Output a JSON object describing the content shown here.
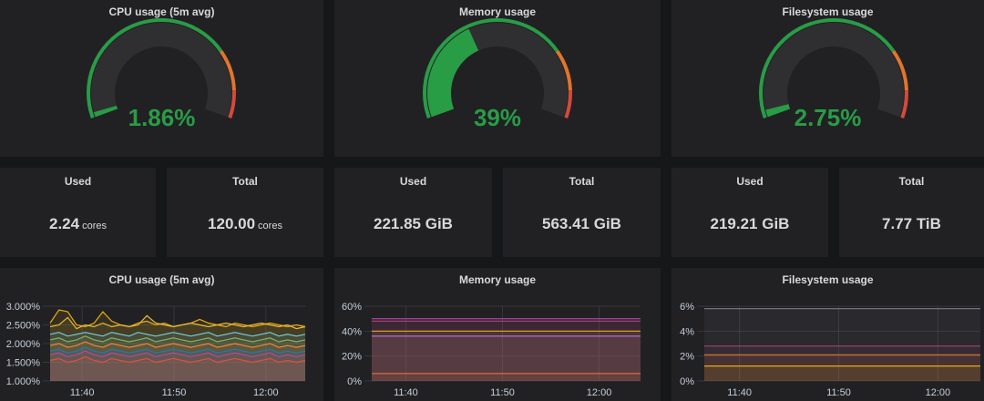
{
  "gauges": [
    {
      "title": "CPU usage (5m avg)",
      "value_text": "1.86%",
      "fraction": 0.0186
    },
    {
      "title": "Memory usage",
      "value_text": "39%",
      "fraction": 0.39
    },
    {
      "title": "Filesystem usage",
      "value_text": "2.75%",
      "fraction": 0.0275
    }
  ],
  "stats": [
    {
      "label": "Used",
      "value": "2.24",
      "unit": "cores"
    },
    {
      "label": "Total",
      "value": "120.00",
      "unit": "cores"
    },
    {
      "label": "Used",
      "value": "221.85 GiB",
      "unit": ""
    },
    {
      "label": "Total",
      "value": "563.41 GiB",
      "unit": ""
    },
    {
      "label": "Used",
      "value": "219.21 GiB",
      "unit": ""
    },
    {
      "label": "Total",
      "value": "7.77 TiB",
      "unit": ""
    }
  ],
  "colors": {
    "green": "#299c46",
    "orange": "#e0752d",
    "red": "#d44a3a",
    "panel": "#212124",
    "background": "#161719"
  },
  "chart_data": [
    {
      "type": "line",
      "title": "CPU usage (5m avg)",
      "y_ticks": [
        "3.000%",
        "2.500%",
        "2.000%",
        "1.500%",
        "1.000%"
      ],
      "ylim": [
        1.0,
        3.0
      ],
      "x_ticks": [
        "11:40",
        "11:50",
        "12:00"
      ],
      "series": [
        {
          "color": "#e5ac0e",
          "values": [
            2.55,
            2.9,
            2.85,
            2.5,
            2.45,
            2.55,
            2.85,
            2.6,
            2.5,
            2.45,
            2.55,
            2.6,
            2.5,
            2.55,
            2.45,
            2.5,
            2.55,
            2.65,
            2.55,
            2.5,
            2.45,
            2.55,
            2.5,
            2.45,
            2.5,
            2.55,
            2.5,
            2.45,
            2.5,
            2.45
          ]
        },
        {
          "color": "#eab839",
          "values": [
            2.45,
            2.5,
            2.7,
            2.4,
            2.5,
            2.45,
            2.55,
            2.45,
            2.5,
            2.45,
            2.5,
            2.75,
            2.55,
            2.5,
            2.45,
            2.5,
            2.55,
            2.5,
            2.45,
            2.5,
            2.55,
            2.5,
            2.45,
            2.5,
            2.55,
            2.5,
            2.45,
            2.5,
            2.4,
            2.45
          ]
        },
        {
          "color": "#6ed0e0",
          "values": [
            2.25,
            2.3,
            2.2,
            2.25,
            2.3,
            2.25,
            2.2,
            2.3,
            2.25,
            2.2,
            2.3,
            2.25,
            2.2,
            2.25,
            2.3,
            2.25,
            2.2,
            2.25,
            2.3,
            2.2,
            2.25,
            2.3,
            2.25,
            2.2,
            2.25,
            2.3,
            2.2,
            2.25,
            2.2,
            2.25
          ]
        },
        {
          "color": "#7eb26d",
          "values": [
            2.1,
            2.15,
            2.05,
            2.1,
            2.2,
            2.1,
            2.05,
            2.15,
            2.1,
            2.05,
            2.1,
            2.15,
            2.05,
            2.1,
            2.15,
            2.1,
            2.05,
            2.1,
            2.15,
            2.05,
            2.1,
            2.15,
            2.1,
            2.05,
            2.1,
            2.15,
            2.05,
            2.1,
            2.05,
            2.1
          ]
        },
        {
          "color": "#ef843c",
          "values": [
            1.95,
            2.0,
            1.9,
            1.95,
            2.05,
            1.95,
            1.9,
            2.0,
            1.95,
            1.9,
            1.95,
            2.0,
            1.9,
            1.95,
            2.0,
            1.95,
            1.9,
            1.95,
            2.0,
            1.9,
            1.95,
            2.0,
            1.95,
            1.9,
            1.95,
            2.0,
            1.9,
            1.95,
            1.9,
            1.95
          ]
        },
        {
          "color": "#1f78c1",
          "values": [
            1.8,
            1.85,
            1.75,
            1.8,
            1.9,
            1.8,
            1.75,
            1.85,
            1.8,
            1.75,
            1.8,
            1.85,
            1.75,
            1.8,
            1.85,
            1.8,
            1.75,
            1.8,
            1.85,
            1.75,
            1.8,
            1.85,
            1.8,
            1.75,
            1.8,
            1.85,
            1.75,
            1.8,
            1.75,
            1.8
          ]
        },
        {
          "color": "#ba43a9",
          "values": [
            1.7,
            1.75,
            1.65,
            1.7,
            1.8,
            1.7,
            1.65,
            1.75,
            1.7,
            1.65,
            1.7,
            1.75,
            1.65,
            1.7,
            1.75,
            1.7,
            1.65,
            1.7,
            1.75,
            1.65,
            1.7,
            1.75,
            1.7,
            1.65,
            1.7,
            1.75,
            1.65,
            1.7,
            1.65,
            1.7
          ]
        },
        {
          "color": "#e24d42",
          "values": [
            1.55,
            1.6,
            1.5,
            1.55,
            1.65,
            1.55,
            1.5,
            1.6,
            1.55,
            1.5,
            1.55,
            1.6,
            1.5,
            1.55,
            1.6,
            1.55,
            1.5,
            1.55,
            1.6,
            1.5,
            1.55,
            1.6,
            1.55,
            1.5,
            1.55,
            1.6,
            1.5,
            1.55,
            1.5,
            1.55
          ]
        }
      ]
    },
    {
      "type": "line",
      "title": "Memory usage",
      "y_ticks": [
        "60%",
        "40%",
        "20%",
        "0%"
      ],
      "ylim": [
        0,
        60
      ],
      "x_ticks": [
        "11:40",
        "11:50",
        "12:00"
      ],
      "series": [
        {
          "color": "#ba43a9",
          "values": [
            50,
            50,
            50,
            50,
            50,
            50,
            50,
            50,
            50,
            50
          ]
        },
        {
          "color": "#a0456a",
          "values": [
            48,
            48,
            48,
            48,
            48,
            48,
            48,
            48,
            48,
            48
          ]
        },
        {
          "color": "#e5ac0e",
          "values": [
            40,
            40,
            40,
            40,
            40,
            40,
            40,
            40,
            40,
            40
          ]
        },
        {
          "color": "#b877d9",
          "values": [
            36,
            36,
            36,
            36,
            36,
            36,
            36,
            36,
            36,
            36
          ]
        },
        {
          "color": "#e0752d",
          "values": [
            6,
            6,
            6,
            6,
            6,
            6,
            6,
            6,
            6,
            6
          ]
        }
      ]
    },
    {
      "type": "line",
      "title": "Filesystem usage",
      "y_ticks": [
        "6%",
        "4%",
        "2%",
        "0%"
      ],
      "ylim": [
        0,
        6
      ],
      "x_ticks": [
        "11:40",
        "11:50",
        "12:00"
      ],
      "series": [
        {
          "color": "#7b7a8a",
          "values": [
            5.8,
            5.8,
            5.8,
            5.8,
            5.8,
            5.8,
            5.8,
            5.8,
            5.8,
            5.8
          ]
        },
        {
          "color": "#a0456a",
          "values": [
            2.8,
            2.8,
            2.8,
            2.8,
            2.8,
            2.8,
            2.8,
            2.8,
            2.8,
            2.8
          ]
        },
        {
          "color": "#e0752d",
          "values": [
            2.1,
            2.1,
            2.1,
            2.1,
            2.1,
            2.1,
            2.1,
            2.1,
            2.1,
            2.1
          ]
        },
        {
          "color": "#e5ac0e",
          "values": [
            1.2,
            1.2,
            1.2,
            1.2,
            1.2,
            1.2,
            1.2,
            1.2,
            1.2,
            1.2
          ]
        }
      ]
    }
  ]
}
